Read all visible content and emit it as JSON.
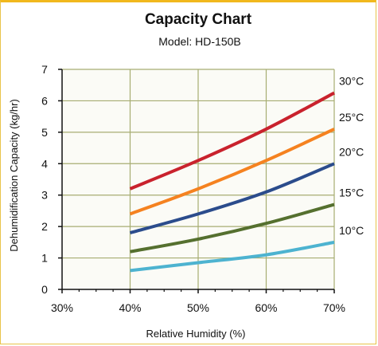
{
  "chart_data": {
    "type": "line",
    "title": "Capacity Chart",
    "subtitle": "Model: HD-150B",
    "xlabel": "Relative Humidity (%)",
    "ylabel": "Dehumidification Capacity (kg/hr)",
    "xlim": [
      30,
      70
    ],
    "ylim": [
      0,
      7
    ],
    "x_ticks": [
      30,
      40,
      50,
      60,
      70
    ],
    "x_tick_labels": [
      "30%",
      "40%",
      "50%",
      "60%",
      "70%"
    ],
    "y_ticks": [
      0,
      1,
      2,
      3,
      4,
      5,
      6,
      7
    ],
    "y_tick_labels": [
      "0",
      "1",
      "2",
      "3",
      "4",
      "5",
      "6",
      "7"
    ],
    "grid": true,
    "legend": "series labels at right end of lines",
    "series": [
      {
        "name": "30°C",
        "color": "#c9222d",
        "x": [
          40,
          50,
          60,
          70
        ],
        "y": [
          3.2,
          4.1,
          5.1,
          6.25
        ]
      },
      {
        "name": "25°C",
        "color": "#f58220",
        "x": [
          40,
          50,
          60,
          70
        ],
        "y": [
          2.4,
          3.2,
          4.1,
          5.1
        ]
      },
      {
        "name": "20°C",
        "color": "#2b4c8c",
        "x": [
          40,
          50,
          60,
          70
        ],
        "y": [
          1.8,
          2.4,
          3.1,
          4.0
        ]
      },
      {
        "name": "15°C",
        "color": "#55702f",
        "x": [
          40,
          50,
          60,
          70
        ],
        "y": [
          1.2,
          1.6,
          2.1,
          2.7
        ]
      },
      {
        "name": "10°C",
        "color": "#4db3d0",
        "x": [
          40,
          50,
          60,
          70
        ],
        "y": [
          0.6,
          0.85,
          1.1,
          1.5
        ]
      }
    ]
  }
}
